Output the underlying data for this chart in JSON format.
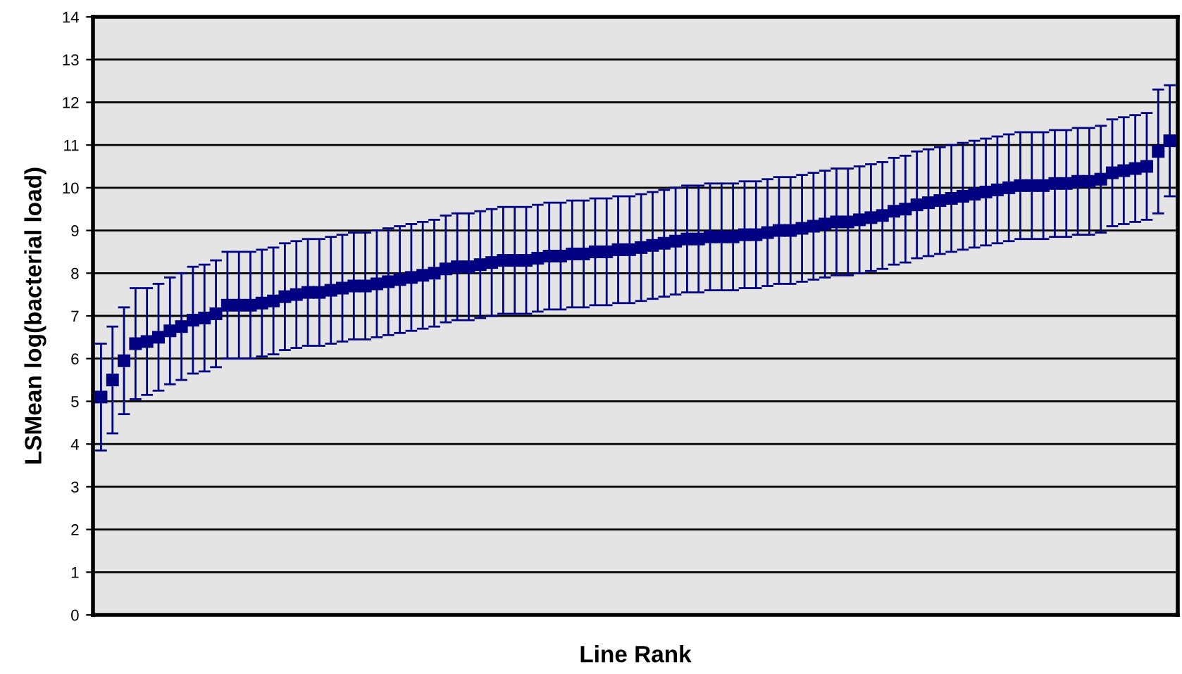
{
  "chart_data": {
    "type": "scatter",
    "xlabel": "Line Rank",
    "ylabel": "LSMean log(bacterial load)",
    "marker": "square",
    "grid": "y",
    "categories": [
      null,
      null,
      null,
      null,
      null,
      null,
      null,
      null,
      null,
      null,
      null,
      null,
      null,
      null,
      null,
      null,
      null,
      null,
      null,
      null,
      null,
      null,
      null,
      null,
      null,
      null,
      null,
      null,
      null,
      null,
      null,
      null,
      null,
      null,
      null,
      null,
      null,
      null,
      null,
      null,
      null,
      null,
      null,
      null,
      null,
      null,
      null,
      null,
      null,
      null,
      null,
      null,
      null,
      null,
      null,
      null,
      null,
      null,
      null,
      null,
      null,
      null,
      null,
      null,
      null,
      null,
      null,
      null,
      null,
      null,
      null,
      null,
      null,
      null,
      null,
      null,
      null,
      null,
      null,
      null,
      null,
      null,
      null,
      null,
      null,
      null,
      null,
      null,
      null,
      null,
      null,
      null,
      null,
      null
    ],
    "ylim": [
      0,
      14
    ],
    "yticks": [
      0,
      1,
      2,
      3,
      4,
      5,
      6,
      7,
      8,
      9,
      10,
      11,
      12,
      13,
      14
    ],
    "series": [
      {
        "color": "#000080",
        "values": [
          5.1,
          5.5,
          5.95,
          6.35,
          6.4,
          6.5,
          6.65,
          6.75,
          6.9,
          6.95,
          7.05,
          7.25,
          7.25,
          7.25,
          7.3,
          7.35,
          7.45,
          7.5,
          7.55,
          7.55,
          7.6,
          7.65,
          7.7,
          7.7,
          7.75,
          7.8,
          7.85,
          7.9,
          7.95,
          8.0,
          8.1,
          8.15,
          8.15,
          8.2,
          8.25,
          8.3,
          8.3,
          8.3,
          8.35,
          8.4,
          8.4,
          8.45,
          8.45,
          8.5,
          8.5,
          8.55,
          8.55,
          8.6,
          8.65,
          8.7,
          8.75,
          8.8,
          8.8,
          8.85,
          8.85,
          8.85,
          8.9,
          8.9,
          8.95,
          9.0,
          9.0,
          9.05,
          9.1,
          9.15,
          9.2,
          9.2,
          9.25,
          9.3,
          9.35,
          9.45,
          9.5,
          9.6,
          9.65,
          9.7,
          9.75,
          9.8,
          9.85,
          9.9,
          9.95,
          10.0,
          10.05,
          10.05,
          10.05,
          10.1,
          10.1,
          10.15,
          10.15,
          10.2,
          10.35,
          10.4,
          10.45,
          10.5,
          10.85,
          11.1
        ],
        "errors": [
          1.25,
          1.25,
          1.25,
          1.3,
          1.25,
          1.25,
          1.25,
          1.25,
          1.25,
          1.25,
          1.25,
          1.25,
          1.25,
          1.25,
          1.25,
          1.25,
          1.25,
          1.25,
          1.25,
          1.25,
          1.25,
          1.25,
          1.25,
          1.25,
          1.25,
          1.25,
          1.25,
          1.25,
          1.25,
          1.25,
          1.25,
          1.25,
          1.25,
          1.25,
          1.25,
          1.25,
          1.25,
          1.25,
          1.25,
          1.25,
          1.25,
          1.25,
          1.25,
          1.25,
          1.25,
          1.25,
          1.25,
          1.25,
          1.25,
          1.25,
          1.25,
          1.25,
          1.25,
          1.25,
          1.25,
          1.25,
          1.25,
          1.25,
          1.25,
          1.25,
          1.25,
          1.25,
          1.25,
          1.25,
          1.25,
          1.25,
          1.25,
          1.25,
          1.25,
          1.25,
          1.25,
          1.25,
          1.25,
          1.25,
          1.25,
          1.25,
          1.25,
          1.25,
          1.25,
          1.25,
          1.25,
          1.25,
          1.25,
          1.25,
          1.25,
          1.25,
          1.25,
          1.25,
          1.25,
          1.25,
          1.25,
          1.25,
          1.45,
          1.3
        ]
      }
    ]
  }
}
